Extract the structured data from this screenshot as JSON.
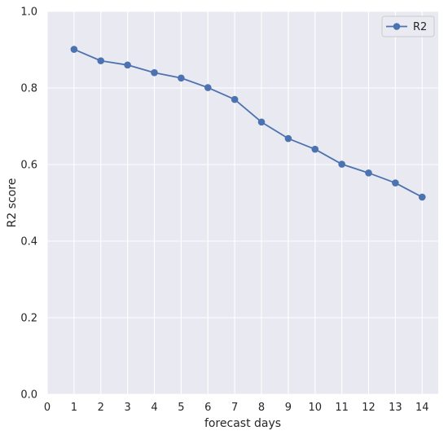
{
  "chart_data": {
    "type": "line",
    "title": "",
    "xlabel": "forecast days",
    "ylabel": "R2 score",
    "xlim": [
      0,
      14.6
    ],
    "ylim": [
      0.0,
      1.0
    ],
    "xticks": [
      0,
      1,
      2,
      3,
      4,
      5,
      6,
      7,
      8,
      9,
      10,
      11,
      12,
      13,
      14
    ],
    "yticks": [
      0.0,
      0.2,
      0.4,
      0.6,
      0.8,
      1.0
    ],
    "ytick_labels": [
      "0.0",
      "0.2",
      "0.4",
      "0.6",
      "0.8",
      "1.0"
    ],
    "grid": true,
    "legend_position": "top-right",
    "background": "#e9e9f1",
    "series": [
      {
        "name": "R2",
        "color": "#4c72b0",
        "marker": "circle",
        "x": [
          1,
          2,
          3,
          4,
          5,
          6,
          7,
          8,
          9,
          10,
          11,
          12,
          13,
          14
        ],
        "y": [
          0.901,
          0.871,
          0.86,
          0.84,
          0.826,
          0.801,
          0.77,
          0.711,
          0.668,
          0.64,
          0.601,
          0.578,
          0.552,
          0.515
        ]
      }
    ]
  }
}
